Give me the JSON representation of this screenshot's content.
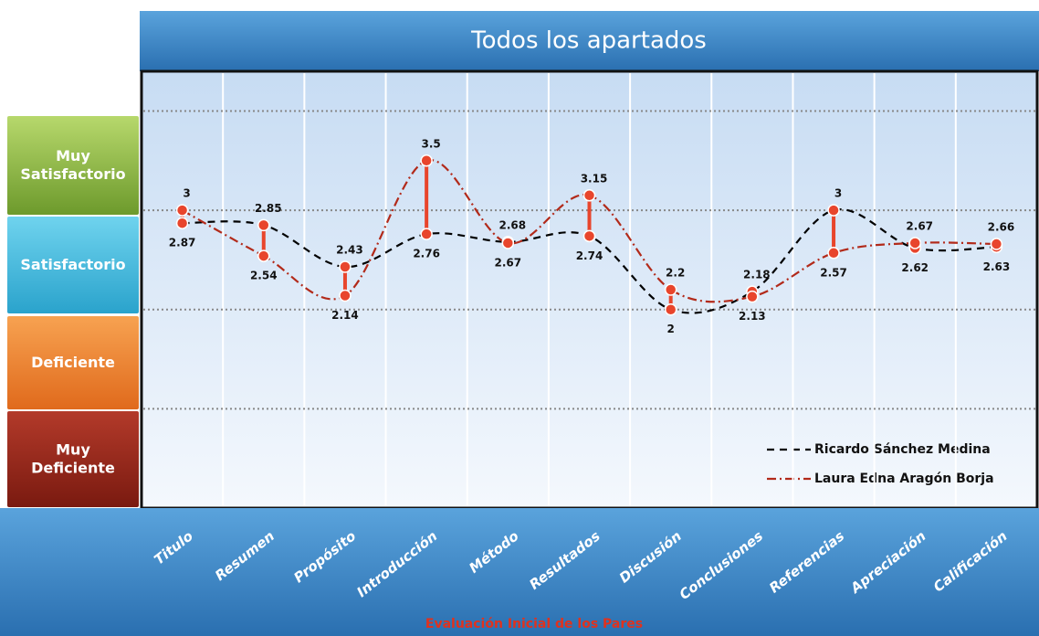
{
  "chart_data": {
    "type": "line",
    "title": "Todos los apartados",
    "x_label": "Evaluación Inicial de los Pares",
    "levels": [
      "Muy Satisfactorio",
      "Satisfactorio",
      "Deficiente",
      "Muy Deficiente"
    ],
    "categories": [
      "Titulo",
      "Resumen",
      "Propósito",
      "Introducción",
      "Método",
      "Resultados",
      "Discusión",
      "Conclusiones",
      "Referencias",
      "Apreciación",
      "Calificación"
    ],
    "series": [
      {
        "name": "Ricardo Sánchez Medina",
        "color": "#000000",
        "dash": "8 6",
        "values": [
          2.87,
          2.85,
          2.43,
          2.76,
          2.68,
          2.74,
          2,
          2.18,
          3,
          2.62,
          2.63
        ]
      },
      {
        "name": "Laura Edna Aragón Borja",
        "color": "#b22a1a",
        "dash": "10 4 2 4",
        "values": [
          3,
          2.54,
          2.14,
          3.5,
          2.67,
          3.15,
          2.2,
          2.13,
          2.57,
          2.67,
          2.66
        ]
      }
    ],
    "range_color": "#e8452c",
    "ylim": [
      0,
      4.4
    ],
    "yticks": [
      1,
      2,
      3,
      4
    ],
    "grid": true
  }
}
